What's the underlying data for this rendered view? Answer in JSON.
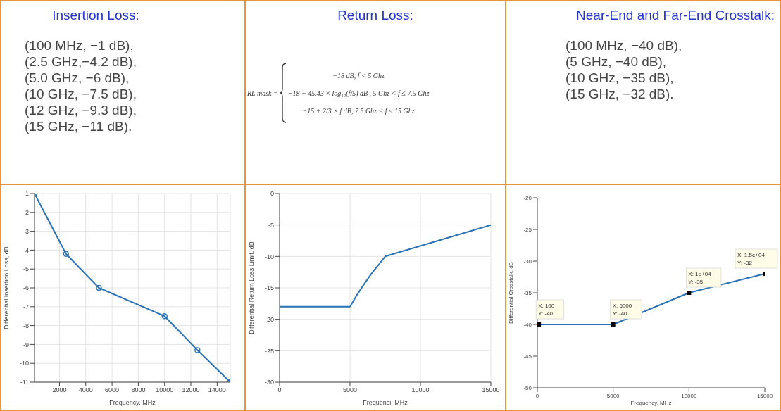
{
  "chart_data": [
    {
      "type": "other",
      "title": "Insertion Loss:",
      "annotations": [
        "(100 MHz, −1 dB),",
        "(2.5 GHz,−4.2 dB),",
        "(5.0 GHz, −6 dB),",
        "(10 GHz, −7.5 dB),",
        "(12 GHz, −9.3 dB),",
        "(15 GHz, −11 dB)."
      ]
    },
    {
      "type": "other",
      "title": "Return Loss:",
      "annotations": [
        "RL mask =",
        "−18 dB, f < 5 Ghz",
        "−18 + 45.43 × log₁₀(f/5) dB , 5 Ghz < f ≤ 7.5 Ghz",
        "−15 + 2/3 × f dB, 7.5 Ghz < f ≤ 15 Ghz"
      ]
    },
    {
      "type": "other",
      "title": "Near-End and Far-End Crosstalk:",
      "annotations": [
        "(100 MHz, −40 dB),",
        "(5 GHz, −40 dB),",
        "(10 GHz, −35 dB),",
        "(15 GHz, −32 dB)."
      ]
    },
    {
      "type": "line",
      "xlabel": "Frequency, MHz",
      "ylabel": "Differential Insertion Loss, dB",
      "x": [
        100,
        2500,
        5000,
        10000,
        12500,
        15000
      ],
      "series": [
        {
          "color": "#2a72b5",
          "values": [
            -1,
            -4.2,
            -6,
            -7.5,
            -9.3,
            -11
          ]
        }
      ],
      "xlim": [
        100,
        15000
      ],
      "xticks": [
        2000,
        4000,
        6000,
        8000,
        10000,
        12000,
        14000
      ],
      "ylim": [
        -11,
        -1
      ],
      "yticks": [
        -11,
        -10,
        -9,
        -8,
        -7,
        -6,
        -5,
        -4,
        -3,
        -2,
        -1
      ],
      "grid": true,
      "marker": "circle",
      "line_style": "solid"
    },
    {
      "type": "line",
      "xlabel": "Frequenci, MHz",
      "ylabel": "Differential Return Loss Limit, dB",
      "x": [
        0,
        5000,
        5500,
        6000,
        6500,
        7000,
        7500,
        15000
      ],
      "series": [
        {
          "color": "#2a72b5",
          "values": [
            -18,
            -18,
            -16.1,
            -14.4,
            -12.8,
            -11.4,
            -10,
            -5
          ]
        }
      ],
      "xlim": [
        0,
        15000
      ],
      "xticks": [
        0,
        5000,
        10000,
        15000
      ],
      "ylim": [
        -30,
        0
      ],
      "yticks": [
        -30,
        -25,
        -20,
        -15,
        -10,
        -5,
        0
      ],
      "grid": true,
      "line_style": "solid"
    },
    {
      "type": "line",
      "xlabel": "Frequency, MHz",
      "ylabel": "Differential Crosstalk, dB",
      "x": [
        100,
        5000,
        10000,
        15000
      ],
      "series": [
        {
          "color": "#2a72b5",
          "values": [
            -40,
            -40,
            -35,
            -32
          ]
        }
      ],
      "xlim": [
        0,
        15000
      ],
      "xticks": [
        0,
        5000,
        10000,
        15000
      ],
      "ylim": [
        -50,
        -20
      ],
      "yticks": [
        -50,
        -45,
        -40,
        -35,
        -30,
        -25,
        -20
      ],
      "marker": "square",
      "line_style": "solid",
      "annotations": [
        {
          "text": "X: 100\nY: -40",
          "x": 100,
          "y": -40
        },
        {
          "text": "X: 5000\nY: -40",
          "x": 5000,
          "y": -40
        },
        {
          "text": "X: 1e+04\nY: -35",
          "x": 10000,
          "y": -35
        },
        {
          "text": "X: 1.5e+04\nY: -32",
          "x": 15000,
          "y": -32
        }
      ]
    }
  ]
}
